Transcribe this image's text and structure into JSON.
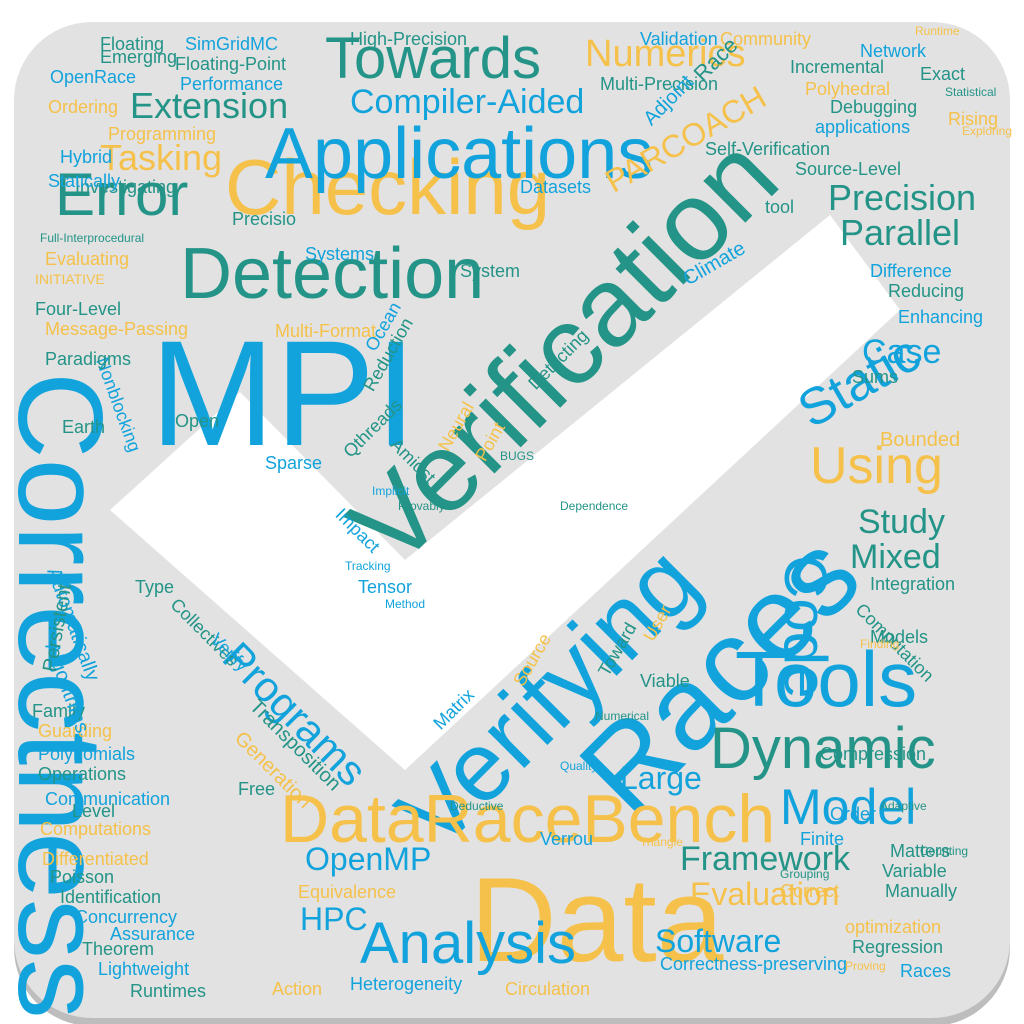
{
  "colors": {
    "background": "#ffffff",
    "board": "#e2e2e2",
    "board_shadow": "#bdbdbd",
    "blue": "#12a3dc",
    "teal": "#239487",
    "yellow": "#f5c14a"
  },
  "shape": "checkbox-with-checkmark",
  "words": [
    {
      "text": "MPI",
      "color": "blue",
      "size": "xxl",
      "rot": 0
    },
    {
      "text": "Correctness",
      "color": "blue",
      "size": "xxl",
      "rot": 90
    },
    {
      "text": "Verification",
      "color": "teal",
      "size": "xxl",
      "rot": -45
    },
    {
      "text": "Data",
      "color": "yellow",
      "size": "xxl",
      "rot": 0
    },
    {
      "text": "Races",
      "color": "blue",
      "size": "xxl",
      "rot": -45
    },
    {
      "text": "Checking",
      "color": "yellow",
      "size": "xl",
      "rot": 0
    },
    {
      "text": "Detection",
      "color": "teal",
      "size": "xl",
      "rot": 0
    },
    {
      "text": "Applications",
      "color": "blue",
      "size": "xl",
      "rot": 0
    },
    {
      "text": "Verifying",
      "color": "blue",
      "size": "xl",
      "rot": -45
    },
    {
      "text": "DataRaceBench",
      "color": "yellow",
      "size": "xl",
      "rot": 0
    },
    {
      "text": "Tools",
      "color": "blue",
      "size": "xl",
      "rot": 0
    },
    {
      "text": "Towards",
      "color": "teal",
      "size": "l",
      "rot": 0
    },
    {
      "text": "Error",
      "color": "teal",
      "size": "l",
      "rot": 0
    },
    {
      "text": "Analysis",
      "color": "blue",
      "size": "l",
      "rot": 0
    },
    {
      "text": "Dynamic",
      "color": "teal",
      "size": "l",
      "rot": 0
    },
    {
      "text": "Static",
      "color": "blue",
      "size": "l",
      "rot": -30
    },
    {
      "text": "Model",
      "color": "blue",
      "size": "l",
      "rot": 0
    },
    {
      "text": "Using",
      "color": "yellow",
      "size": "l",
      "rot": 0
    },
    {
      "text": "Code",
      "color": "blue",
      "size": "l",
      "rot": 90
    },
    {
      "text": "Programs",
      "color": "blue",
      "size": "m",
      "rot": 45
    },
    {
      "text": "Numerics",
      "color": "yellow",
      "size": "m",
      "rot": 0
    },
    {
      "text": "Compiler-Aided",
      "color": "blue",
      "size": "m",
      "rot": 0
    },
    {
      "text": "Extension",
      "color": "teal",
      "size": "m",
      "rot": 0
    },
    {
      "text": "Tasking",
      "color": "yellow",
      "size": "m",
      "rot": 0
    },
    {
      "text": "Precision",
      "color": "teal",
      "size": "m",
      "rot": 0
    },
    {
      "text": "Parallel",
      "color": "teal",
      "size": "m",
      "rot": 0
    },
    {
      "text": "Case",
      "color": "blue",
      "size": "m",
      "rot": 0
    },
    {
      "text": "Study",
      "color": "teal",
      "size": "m",
      "rot": 0
    },
    {
      "text": "Mixed",
      "color": "teal",
      "size": "m",
      "rot": 0
    },
    {
      "text": "Framework",
      "color": "teal",
      "size": "m",
      "rot": 0
    },
    {
      "text": "Software",
      "color": "blue",
      "size": "m",
      "rot": 0
    },
    {
      "text": "Evaluation",
      "color": "yellow",
      "size": "m",
      "rot": 0
    },
    {
      "text": "OpenMP",
      "color": "blue",
      "size": "m",
      "rot": 0
    },
    {
      "text": "HPC",
      "color": "blue",
      "size": "m",
      "rot": 0
    },
    {
      "text": "Large",
      "color": "blue",
      "size": "m",
      "rot": 0
    },
    {
      "text": "Bounded",
      "color": "yellow",
      "size": "s",
      "rot": 0
    },
    {
      "text": "Reducing",
      "color": "teal",
      "size": "s",
      "rot": 0
    },
    {
      "text": "Enhancing",
      "color": "blue",
      "size": "s",
      "rot": 0
    },
    {
      "text": "Transposition",
      "color": "teal",
      "size": "s",
      "rot": 45
    },
    {
      "text": "Generation",
      "color": "yellow",
      "size": "s",
      "rot": 45
    },
    {
      "text": "Equivalence",
      "color": "yellow",
      "size": "s",
      "rot": 0
    },
    {
      "text": "Verrou",
      "color": "blue",
      "size": "s",
      "rot": 0
    },
    {
      "text": "Finite",
      "color": "blue",
      "size": "s",
      "rot": 0
    },
    {
      "text": "Order",
      "color": "blue",
      "size": "s",
      "rot": 0
    },
    {
      "text": "Matters",
      "color": "teal",
      "size": "s",
      "rot": 0
    },
    {
      "text": "Variable",
      "color": "teal",
      "size": "s",
      "rot": 0
    },
    {
      "text": "Manually",
      "color": "teal",
      "size": "s",
      "rot": 0
    },
    {
      "text": "Correct",
      "color": "yellow",
      "size": "s",
      "rot": 0
    },
    {
      "text": "optimization",
      "color": "yellow",
      "size": "s",
      "rot": 0
    },
    {
      "text": "Regression",
      "color": "teal",
      "size": "s",
      "rot": 0
    },
    {
      "text": "Races",
      "color": "blue",
      "size": "s",
      "rot": 0
    },
    {
      "text": "Heterogeneity",
      "color": "blue",
      "size": "s",
      "rot": 0
    },
    {
      "text": "Correctness-preserving",
      "color": "blue",
      "size": "s",
      "rot": 0
    },
    {
      "text": "Circulation",
      "color": "yellow",
      "size": "s",
      "rot": 0
    },
    {
      "text": "Action",
      "color": "yellow",
      "size": "s",
      "rot": 0
    },
    {
      "text": "Runtimes",
      "color": "teal",
      "size": "s",
      "rot": 0
    },
    {
      "text": "Lightweight",
      "color": "blue",
      "size": "s",
      "rot": 0
    },
    {
      "text": "Theorem",
      "color": "teal",
      "size": "s",
      "rot": 0
    },
    {
      "text": "Assurance",
      "color": "blue",
      "size": "s",
      "rot": 0
    },
    {
      "text": "Concurrency",
      "color": "blue",
      "size": "s",
      "rot": 0
    },
    {
      "text": "Identification",
      "color": "teal",
      "size": "s",
      "rot": 0
    },
    {
      "text": "Poisson",
      "color": "teal",
      "size": "s",
      "rot": 0
    },
    {
      "text": "Differentiated",
      "color": "yellow",
      "size": "s",
      "rot": 0
    },
    {
      "text": "Computations",
      "color": "yellow",
      "size": "s",
      "rot": 0
    },
    {
      "text": "Communication",
      "color": "blue",
      "size": "s",
      "rot": 0
    },
    {
      "text": "Level",
      "color": "teal",
      "size": "s",
      "rot": 0
    },
    {
      "text": "Operations",
      "color": "teal",
      "size": "s",
      "rot": 0
    },
    {
      "text": "Polynomials",
      "color": "blue",
      "size": "s",
      "rot": 0
    },
    {
      "text": "Guarding",
      "color": "yellow",
      "size": "s",
      "rot": 0
    },
    {
      "text": "Family",
      "color": "teal",
      "size": "s",
      "rot": 0
    },
    {
      "text": "Algorithms",
      "color": "blue",
      "size": "s",
      "rot": 70
    },
    {
      "text": "Automatically",
      "color": "blue",
      "size": "s",
      "rot": 70
    },
    {
      "text": "Persistent",
      "color": "teal",
      "size": "s",
      "rot": -80
    },
    {
      "text": "Sparse",
      "color": "blue",
      "size": "s",
      "rot": 0
    },
    {
      "text": "Earth",
      "color": "teal",
      "size": "s",
      "rot": 0
    },
    {
      "text": "Open",
      "color": "teal",
      "size": "s",
      "rot": 0
    },
    {
      "text": "Nonblocking",
      "color": "blue",
      "size": "s",
      "rot": 70
    },
    {
      "text": "Paradigms",
      "color": "teal",
      "size": "s",
      "rot": 0
    },
    {
      "text": "Message-Passing",
      "color": "yellow",
      "size": "s",
      "rot": 0
    },
    {
      "text": "Four-Level",
      "color": "teal",
      "size": "s",
      "rot": 0
    },
    {
      "text": "INITIATIVE",
      "color": "yellow",
      "size": "xs",
      "rot": 0
    },
    {
      "text": "Evaluating",
      "color": "yellow",
      "size": "s",
      "rot": 0
    },
    {
      "text": "Full-Interprocedural",
      "color": "teal",
      "size": "xs",
      "rot": 0
    },
    {
      "text": "Investigating",
      "color": "teal",
      "size": "s",
      "rot": 0
    },
    {
      "text": "Hybrid",
      "color": "blue",
      "size": "s",
      "rot": 0
    },
    {
      "text": "Programming",
      "color": "yellow",
      "size": "s",
      "rot": 0
    },
    {
      "text": "Ordering",
      "color": "yellow",
      "size": "s",
      "rot": 0
    },
    {
      "text": "OpenRace",
      "color": "blue",
      "size": "s",
      "rot": 0
    },
    {
      "text": "Emerging",
      "color": "teal",
      "size": "s",
      "rot": 0
    },
    {
      "text": "Floating",
      "color": "teal",
      "size": "s",
      "rot": 0
    },
    {
      "text": "SimGridMC",
      "color": "blue",
      "size": "s",
      "rot": 0
    },
    {
      "text": "Floating-Point",
      "color": "teal",
      "size": "s",
      "rot": 0
    },
    {
      "text": "Performance",
      "color": "blue",
      "size": "s",
      "rot": 0
    },
    {
      "text": "High-Precision",
      "color": "teal",
      "size": "s",
      "rot": 0
    },
    {
      "text": "Multi-Precision",
      "color": "teal",
      "size": "s",
      "rot": 0
    },
    {
      "text": "Validation",
      "color": "blue",
      "size": "s",
      "rot": 0
    },
    {
      "text": "Community",
      "color": "yellow",
      "size": "s",
      "rot": 0
    },
    {
      "text": "Incremental",
      "color": "teal",
      "size": "s",
      "rot": 0
    },
    {
      "text": "Network",
      "color": "blue",
      "size": "s",
      "rot": 0
    },
    {
      "text": "Exact",
      "color": "teal",
      "size": "s",
      "rot": 0
    },
    {
      "text": "Polyhedral",
      "color": "yellow",
      "size": "s",
      "rot": 0
    },
    {
      "text": "Rising",
      "color": "yellow",
      "size": "s",
      "rot": 0
    },
    {
      "text": "Debugging",
      "color": "teal",
      "size": "s",
      "rot": 0
    },
    {
      "text": "applications",
      "color": "blue",
      "size": "s",
      "rot": 0
    },
    {
      "text": "Self-Verification",
      "color": "teal",
      "size": "s",
      "rot": 0
    },
    {
      "text": "Source-Level",
      "color": "teal",
      "size": "s",
      "rot": 0
    },
    {
      "text": "Datasets",
      "color": "blue",
      "size": "s",
      "rot": 0
    },
    {
      "text": "tool",
      "color": "teal",
      "size": "s",
      "rot": 0
    },
    {
      "text": "Difference",
      "color": "blue",
      "size": "s",
      "rot": 0
    },
    {
      "text": "System",
      "color": "teal",
      "size": "s",
      "rot": 0
    },
    {
      "text": "Systems",
      "color": "blue",
      "size": "s",
      "rot": 0
    },
    {
      "text": "Climate",
      "color": "blue",
      "size": "s",
      "rot": -30
    },
    {
      "text": "PARCOACH",
      "color": "yellow",
      "size": "m",
      "rot": -30
    },
    {
      "text": "Adjoint",
      "color": "blue",
      "size": "s",
      "rot": -45
    },
    {
      "text": "Race",
      "color": "teal",
      "size": "s",
      "rot": -45
    },
    {
      "text": "Qthreads",
      "color": "teal",
      "size": "s",
      "rot": -45
    },
    {
      "text": "Tensor",
      "color": "blue",
      "size": "s",
      "rot": 0
    },
    {
      "text": "Matrix",
      "color": "blue",
      "size": "s",
      "rot": -45
    },
    {
      "text": "Integration",
      "color": "teal",
      "size": "s",
      "rot": 0
    },
    {
      "text": "Computation",
      "color": "teal",
      "size": "s",
      "rot": 45
    },
    {
      "text": "Models",
      "color": "teal",
      "size": "s",
      "rot": 0
    },
    {
      "text": "Compression",
      "color": "teal",
      "size": "s",
      "rot": 0
    },
    {
      "text": "Finding",
      "color": "yellow",
      "size": "xs",
      "rot": 0
    },
    {
      "text": "Viable",
      "color": "teal",
      "size": "s",
      "rot": 0
    },
    {
      "text": "Point",
      "color": "yellow",
      "size": "s",
      "rot": -60
    },
    {
      "text": "Impact",
      "color": "blue",
      "size": "s",
      "rot": 45
    },
    {
      "text": "Neural",
      "color": "yellow",
      "size": "s",
      "rot": -60
    },
    {
      "text": "Amidst",
      "color": "teal",
      "size": "s",
      "rot": 45
    },
    {
      "text": "Reduction",
      "color": "teal",
      "size": "s",
      "rot": -60
    },
    {
      "text": "Ocean",
      "color": "blue",
      "size": "s",
      "rot": -60
    },
    {
      "text": "Detecting",
      "color": "teal",
      "size": "s",
      "rot": -45
    },
    {
      "text": "Free",
      "color": "teal",
      "size": "s",
      "rot": 0
    },
    {
      "text": "Tracking",
      "color": "blue",
      "size": "xs",
      "rot": 0
    },
    {
      "text": "Toward",
      "color": "teal",
      "size": "s",
      "rot": -60
    },
    {
      "text": "Source",
      "color": "yellow",
      "size": "s",
      "rot": -60
    },
    {
      "text": "User",
      "color": "yellow",
      "size": "s",
      "rot": -60
    },
    {
      "text": "Collectives",
      "color": "teal",
      "size": "s",
      "rot": 45
    },
    {
      "text": "Verify",
      "color": "blue",
      "size": "s",
      "rot": 45
    },
    {
      "text": "Type",
      "color": "teal",
      "size": "s",
      "rot": 0
    },
    {
      "text": "Statistical",
      "color": "teal",
      "size": "xs",
      "rot": 0
    },
    {
      "text": "Statically",
      "color": "blue",
      "size": "s",
      "rot": 0
    },
    {
      "text": "Method",
      "color": "blue",
      "size": "xs",
      "rot": 0
    },
    {
      "text": "Counting",
      "color": "teal",
      "size": "xs",
      "rot": 0
    },
    {
      "text": "Proving",
      "color": "yellow",
      "size": "xs",
      "rot": 0
    },
    {
      "text": "Grouping",
      "color": "teal",
      "size": "xs",
      "rot": 0
    },
    {
      "text": "Numerical",
      "color": "teal",
      "size": "xs",
      "rot": 0
    },
    {
      "text": "Implicit",
      "color": "blue",
      "size": "xs",
      "rot": 0
    },
    {
      "text": "Provably",
      "color": "teal",
      "size": "xs",
      "rot": 0
    },
    {
      "text": "BUGS",
      "color": "teal",
      "size": "xs",
      "rot": 0
    },
    {
      "text": "Dependence",
      "color": "teal",
      "size": "xs",
      "rot": 0
    },
    {
      "text": "Triangle",
      "color": "yellow",
      "size": "xs",
      "rot": 0
    },
    {
      "text": "Precisio",
      "color": "teal",
      "size": "s",
      "rot": 0
    },
    {
      "text": "Deductive",
      "color": "teal",
      "size": "xs",
      "rot": 0
    },
    {
      "text": "Quality",
      "color": "blue",
      "size": "xs",
      "rot": 0
    },
    {
      "text": "Sums",
      "color": "teal",
      "size": "s",
      "rot": 0
    },
    {
      "text": "Exploring",
      "color": "yellow",
      "size": "xs",
      "rot": 0
    },
    {
      "text": "Adaptive",
      "color": "teal",
      "size": "xs",
      "rot": 0
    },
    {
      "text": "Runtime",
      "color": "yellow",
      "size": "xs",
      "rot": 0
    },
    {
      "text": "Multi-Format",
      "color": "yellow",
      "size": "s",
      "rot": 0
    }
  ]
}
